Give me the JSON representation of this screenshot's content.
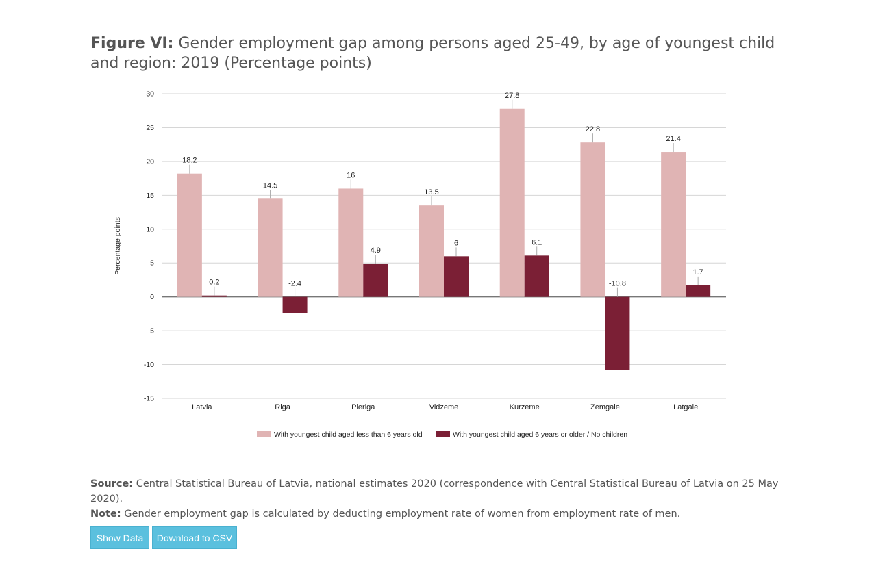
{
  "figure": {
    "label": "Figure VI:",
    "title": "Gender employment gap among persons aged 25-49, by age of youngest child and region: 2019 (Percentage points)"
  },
  "source": {
    "label": "Source:",
    "text": "Central Statistical Bureau of Latvia, national estimates 2020 (correspondence with Central Statistical Bureau of Latvia on 25 May 2020)."
  },
  "note": {
    "label": "Note:",
    "text": "Gender employment gap is calculated by deducting employment rate of women from employment rate of men."
  },
  "buttons": {
    "show_data": "Show Data",
    "download_csv": "Download to CSV"
  },
  "chart_data": {
    "type": "bar",
    "ylabel": "Percentage points",
    "xlabel": "",
    "ylim": [
      -15,
      30
    ],
    "yticks": [
      30,
      25,
      20,
      15,
      10,
      5,
      0,
      -5,
      -10,
      -15
    ],
    "grid": true,
    "legend_position": "bottom",
    "categories": [
      "Latvia",
      "Riga",
      "Pieriga",
      "Vidzeme",
      "Kurzeme",
      "Zemgale",
      "Latgale"
    ],
    "series": [
      {
        "name": "With youngest child aged less than 6 years old",
        "color": "#e0b4b4",
        "values": [
          18.2,
          14.5,
          16,
          13.5,
          27.8,
          22.8,
          21.4
        ]
      },
      {
        "name": "With youngest child aged 6 years or older / No children",
        "color": "#7b1f35",
        "values": [
          0.2,
          -2.4,
          4.9,
          6,
          6.1,
          -10.8,
          1.7
        ]
      }
    ]
  }
}
